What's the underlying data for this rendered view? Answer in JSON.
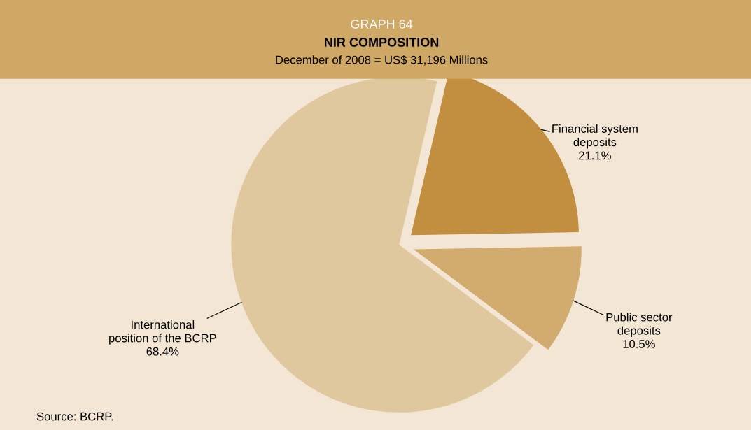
{
  "chart_data": {
    "type": "pie",
    "title": "NIR COMPOSITION",
    "subtitle": "December of 2008 = US$ 31,196 Millions",
    "annotations": [
      "GRAPH 64",
      "Source: BCRP."
    ],
    "categories": [
      "International\nposition of the BCRP",
      "Financial system\ndeposits",
      "Public sector\ndeposits"
    ],
    "values": [
      68.4,
      21.1,
      10.5
    ],
    "value_labels": [
      "68.4%",
      "21.1%",
      "10.5%"
    ],
    "colors": [
      "#e0c89e",
      "#c18f3f",
      "#d2ab6e"
    ],
    "legend": false
  }
}
